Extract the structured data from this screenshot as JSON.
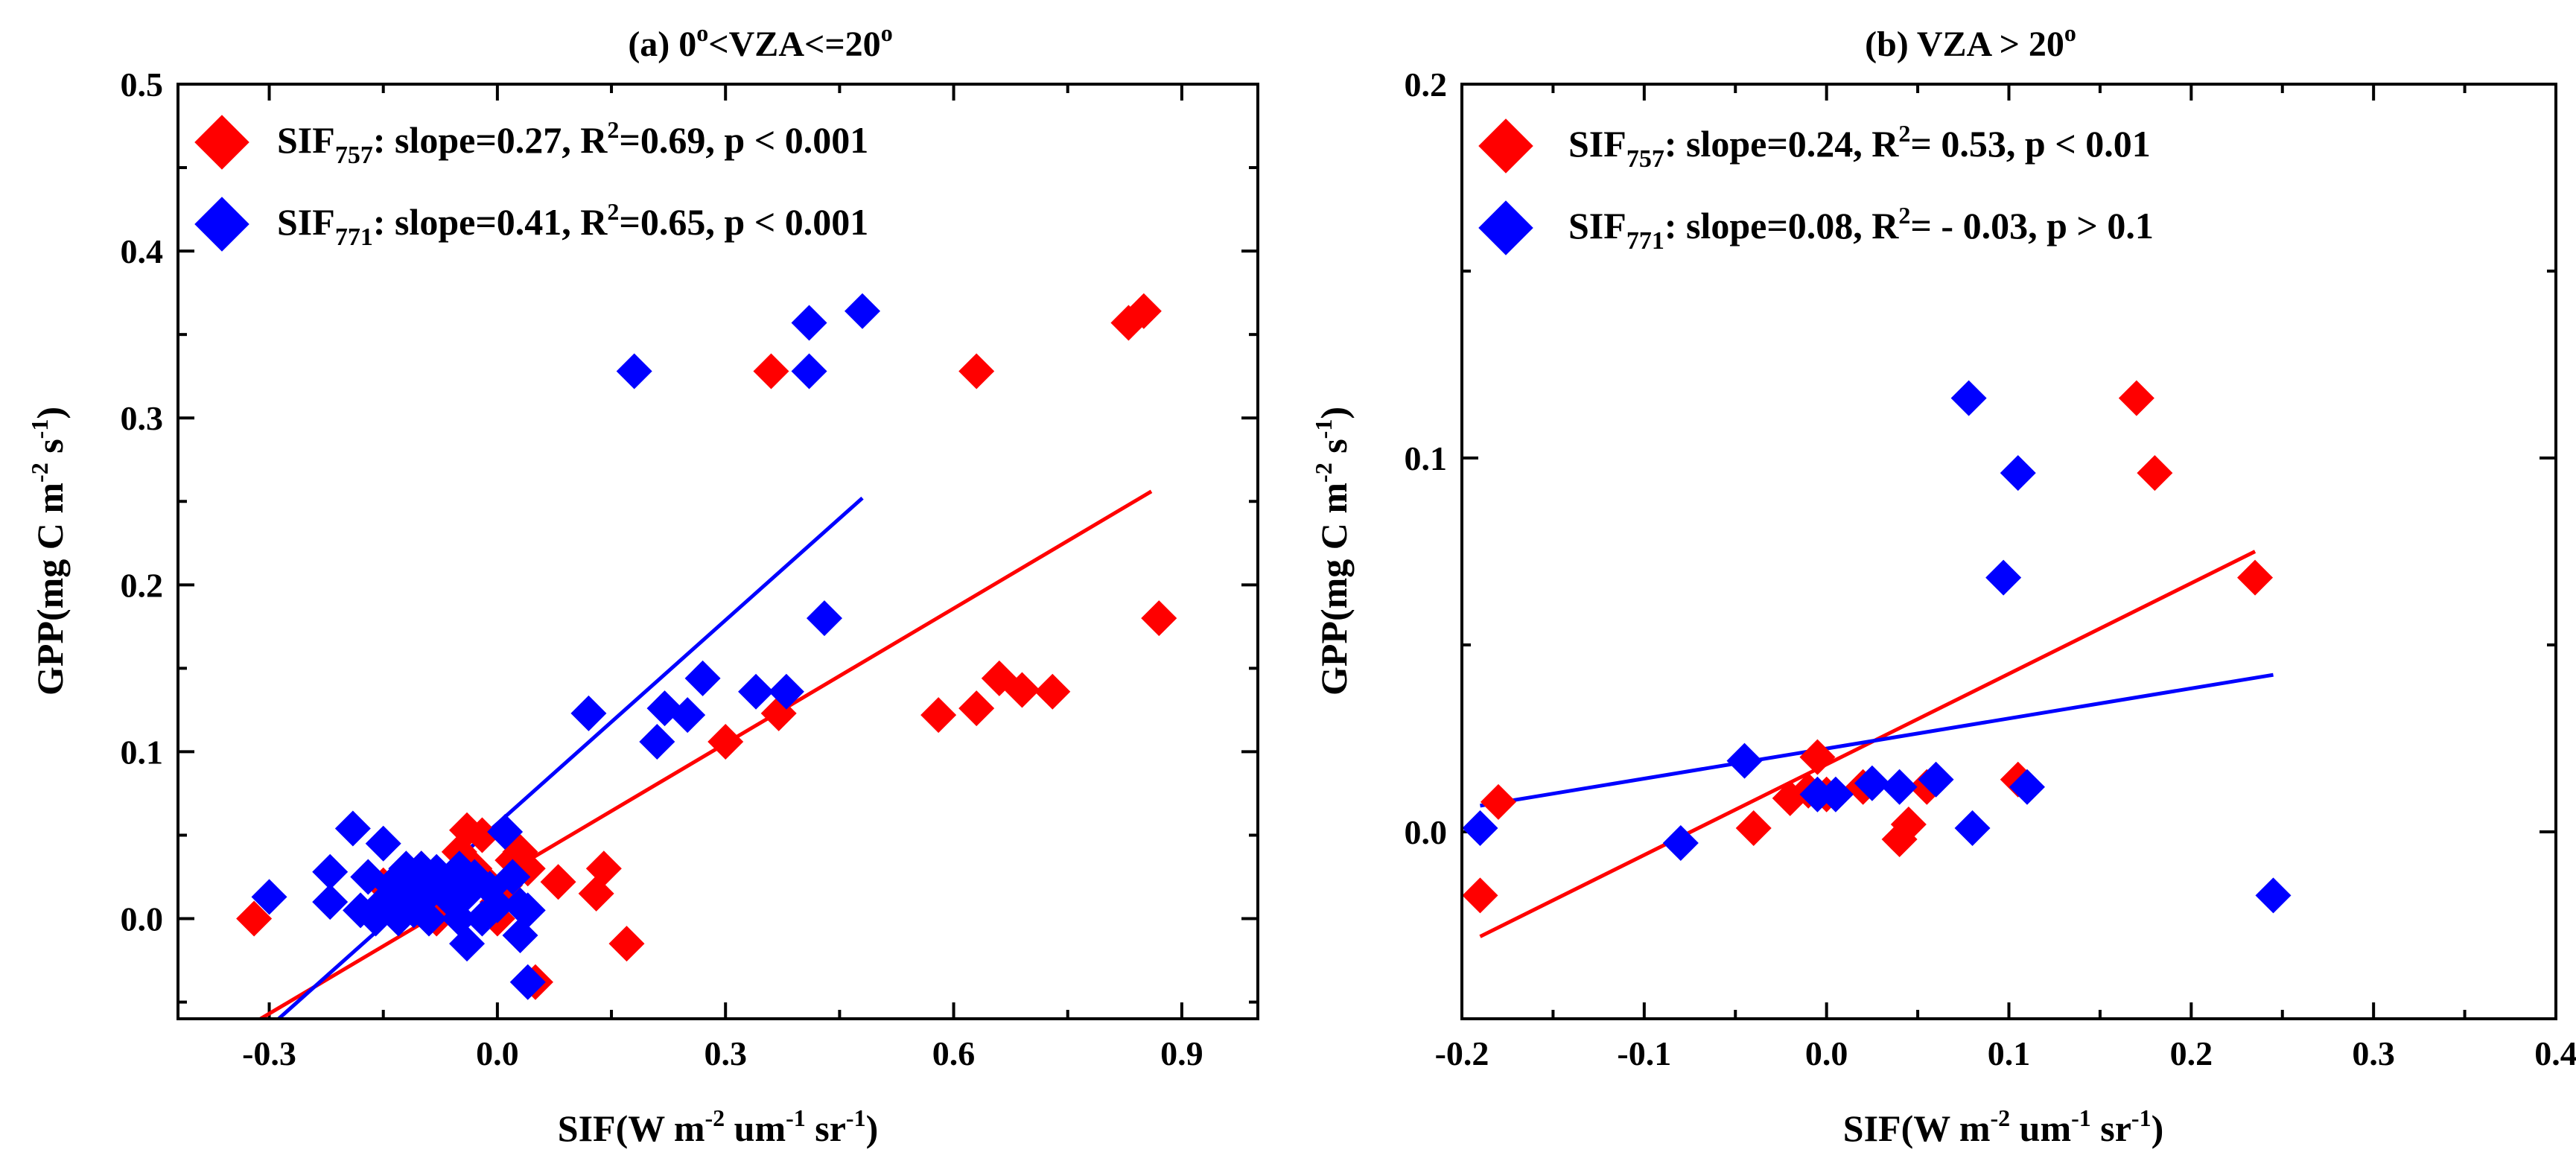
{
  "chart_data": [
    {
      "type": "scatter",
      "panel": "a",
      "title": "(a) 0°<VZA<=20°",
      "title_parts": {
        "prefix": "(a) 0",
        "deg1": "o",
        "middle": "<VZA<=20",
        "deg2": "o"
      },
      "xlabel_parts": {
        "pre": "SIF(W m",
        "sup1": "-2",
        "mid": " um",
        "sup2": "-1",
        "mid2": " sr",
        "sup3": "-1",
        "post": ")"
      },
      "ylabel_parts": {
        "pre": "GPP(mg C m",
        "sup1": "-2",
        "mid": " s",
        "sup2": "-1",
        "post": ")"
      },
      "xlim": [
        -0.42,
        1.0
      ],
      "ylim": [
        -0.06,
        0.5
      ],
      "xticks": [
        -0.3,
        0.0,
        0.3,
        0.6,
        0.9
      ],
      "xtick_labels": [
        "-0.3",
        "0.0",
        "0.3",
        "0.6",
        "0.9"
      ],
      "yticks": [
        0.0,
        0.1,
        0.2,
        0.3,
        0.4,
        0.5
      ],
      "ytick_labels": [
        "0.0",
        "0.1",
        "0.2",
        "0.3",
        "0.4",
        "0.5"
      ],
      "series": [
        {
          "name": "SIF757",
          "color": "#ff0000",
          "legend": {
            "base": "SIF",
            "sub": "757",
            "text1": ": slope=0.27, R",
            "sup": "2",
            "text2": "=0.69,  p < 0.001"
          },
          "fit": {
            "x": [
              -0.33,
              0.86
            ],
            "y": [
              -0.065,
              0.256
            ]
          },
          "points": [
            [
              -0.32,
              0.0
            ],
            [
              -0.15,
              0.02
            ],
            [
              -0.12,
              0.01
            ],
            [
              -0.1,
              0.03
            ],
            [
              -0.08,
              0.0
            ],
            [
              -0.06,
              0.02
            ],
            [
              -0.05,
              0.04
            ],
            [
              -0.04,
              0.053
            ],
            [
              -0.03,
              0.03
            ],
            [
              -0.02,
              0.05
            ],
            [
              -0.01,
              0.02
            ],
            [
              0.0,
              0.01
            ],
            [
              0.0,
              0.0
            ],
            [
              0.01,
              0.02
            ],
            [
              0.02,
              0.035
            ],
            [
              0.03,
              0.04
            ],
            [
              0.04,
              0.03
            ],
            [
              0.05,
              -0.038
            ],
            [
              0.08,
              0.022
            ],
            [
              0.13,
              0.015
            ],
            [
              0.14,
              0.03
            ],
            [
              0.17,
              -0.015
            ],
            [
              0.3,
              0.106
            ],
            [
              0.36,
              0.328
            ],
            [
              0.37,
              0.123
            ],
            [
              0.58,
              0.122
            ],
            [
              0.63,
              0.126
            ],
            [
              0.63,
              0.328
            ],
            [
              0.66,
              0.144
            ],
            [
              0.69,
              0.137
            ],
            [
              0.73,
              0.136
            ],
            [
              0.83,
              0.357
            ],
            [
              0.85,
              0.364
            ],
            [
              0.87,
              0.18
            ]
          ]
        },
        {
          "name": "SIF771",
          "color": "#0000ff",
          "legend": {
            "base": "SIF",
            "sub": "771",
            "text1": ": slope=0.41, R",
            "sup": "2",
            "text2": "=0.65,  p < 0.001"
          },
          "fit": {
            "x": [
              -0.3,
              0.48
            ],
            "y": [
              -0.065,
              0.252
            ]
          },
          "points": [
            [
              -0.3,
              0.013
            ],
            [
              -0.22,
              0.028
            ],
            [
              -0.22,
              0.01
            ],
            [
              -0.19,
              0.054
            ],
            [
              -0.18,
              0.005
            ],
            [
              -0.17,
              0.025
            ],
            [
              -0.16,
              0.0
            ],
            [
              -0.15,
              0.045
            ],
            [
              -0.15,
              0.01
            ],
            [
              -0.14,
              0.02
            ],
            [
              -0.13,
              0.0
            ],
            [
              -0.13,
              0.015
            ],
            [
              -0.12,
              0.03
            ],
            [
              -0.11,
              0.005
            ],
            [
              -0.11,
              0.02
            ],
            [
              -0.1,
              0.01
            ],
            [
              -0.1,
              0.03
            ],
            [
              -0.09,
              0.0
            ],
            [
              -0.09,
              0.015
            ],
            [
              -0.08,
              0.028
            ],
            [
              -0.07,
              0.02
            ],
            [
              -0.06,
              0.01
            ],
            [
              -0.05,
              0.0
            ],
            [
              -0.05,
              0.03
            ],
            [
              -0.04,
              -0.015
            ],
            [
              -0.04,
              0.015
            ],
            [
              -0.03,
              0.025
            ],
            [
              -0.02,
              0.0
            ],
            [
              -0.01,
              0.018
            ],
            [
              0.0,
              0.008
            ],
            [
              0.01,
              0.052
            ],
            [
              0.02,
              0.025
            ],
            [
              0.03,
              0.008
            ],
            [
              0.03,
              -0.01
            ],
            [
              0.04,
              -0.038
            ],
            [
              0.04,
              0.005
            ],
            [
              0.12,
              0.123
            ],
            [
              0.18,
              0.328
            ],
            [
              0.21,
              0.106
            ],
            [
              0.22,
              0.126
            ],
            [
              0.25,
              0.122
            ],
            [
              0.27,
              0.144
            ],
            [
              0.34,
              0.136
            ],
            [
              0.38,
              0.136
            ],
            [
              0.41,
              0.328
            ],
            [
              0.41,
              0.357
            ],
            [
              0.43,
              0.18
            ],
            [
              0.48,
              0.364
            ]
          ]
        }
      ]
    },
    {
      "type": "scatter",
      "panel": "b",
      "title": "(b) VZA > 20°",
      "title_parts": {
        "prefix": "(b) VZA > 20",
        "deg": "o"
      },
      "xlabel_parts": {
        "pre": "SIF(W m",
        "sup1": "-2",
        "mid": " um",
        "sup2": "-1",
        "mid2": " sr",
        "sup3": "-1",
        "post": ")"
      },
      "ylabel_parts": {
        "pre": "GPP(mg C m",
        "sup1": "-2",
        "mid": " s",
        "sup2": "-1",
        "post": ")"
      },
      "xlim": [
        -0.2,
        0.4
      ],
      "ylim": [
        -0.05,
        0.2
      ],
      "xticks": [
        -0.2,
        -0.1,
        0.0,
        0.1,
        0.2,
        0.3,
        0.4
      ],
      "xtick_labels": [
        "-0.2",
        "-0.1",
        "0.0",
        "0.1",
        "0.2",
        "0.3",
        "0.4"
      ],
      "yticks": [
        0.0,
        0.1,
        0.2
      ],
      "ytick_labels": [
        "0.0",
        "0.1",
        "0.2"
      ],
      "yminor": [
        0.05,
        0.15
      ],
      "series": [
        {
          "name": "SIF757",
          "color": "#ff0000",
          "legend": {
            "base": "SIF",
            "sub": "757",
            "text1": ": slope=0.24, R",
            "sup": "2",
            "text2": "=  0.53,   p < 0.01"
          },
          "fit": {
            "x": [
              -0.19,
              0.235
            ],
            "y": [
              -0.028,
              0.075
            ]
          },
          "points": [
            [
              -0.19,
              -0.017
            ],
            [
              -0.18,
              0.008
            ],
            [
              -0.04,
              0.001
            ],
            [
              -0.02,
              0.009
            ],
            [
              -0.01,
              0.011
            ],
            [
              -0.005,
              0.02
            ],
            [
              0.0,
              0.01
            ],
            [
              0.02,
              0.012
            ],
            [
              0.04,
              -0.002
            ],
            [
              0.045,
              0.002
            ],
            [
              0.055,
              0.012
            ],
            [
              0.105,
              0.014
            ],
            [
              0.17,
              0.116
            ],
            [
              0.18,
              0.096
            ],
            [
              0.235,
              0.068
            ]
          ]
        },
        {
          "name": "SIF771",
          "color": "#0000ff",
          "legend": {
            "base": "SIF",
            "sub": "771",
            "text1": ": slope=0.08, R",
            "sup": "2",
            "text2": "= - 0.03,   p > 0.1"
          },
          "fit": {
            "x": [
              -0.19,
              0.245
            ],
            "y": [
              0.007,
              0.042
            ]
          },
          "points": [
            [
              -0.19,
              0.001
            ],
            [
              -0.08,
              -0.003
            ],
            [
              -0.045,
              0.019
            ],
            [
              -0.005,
              0.01
            ],
            [
              0.005,
              0.01
            ],
            [
              0.025,
              0.013
            ],
            [
              0.04,
              0.012
            ],
            [
              0.06,
              0.014
            ],
            [
              0.078,
              0.116
            ],
            [
              0.08,
              0.001
            ],
            [
              0.097,
              0.068
            ],
            [
              0.105,
              0.096
            ],
            [
              0.11,
              0.012
            ],
            [
              0.245,
              -0.017
            ]
          ]
        }
      ]
    }
  ]
}
